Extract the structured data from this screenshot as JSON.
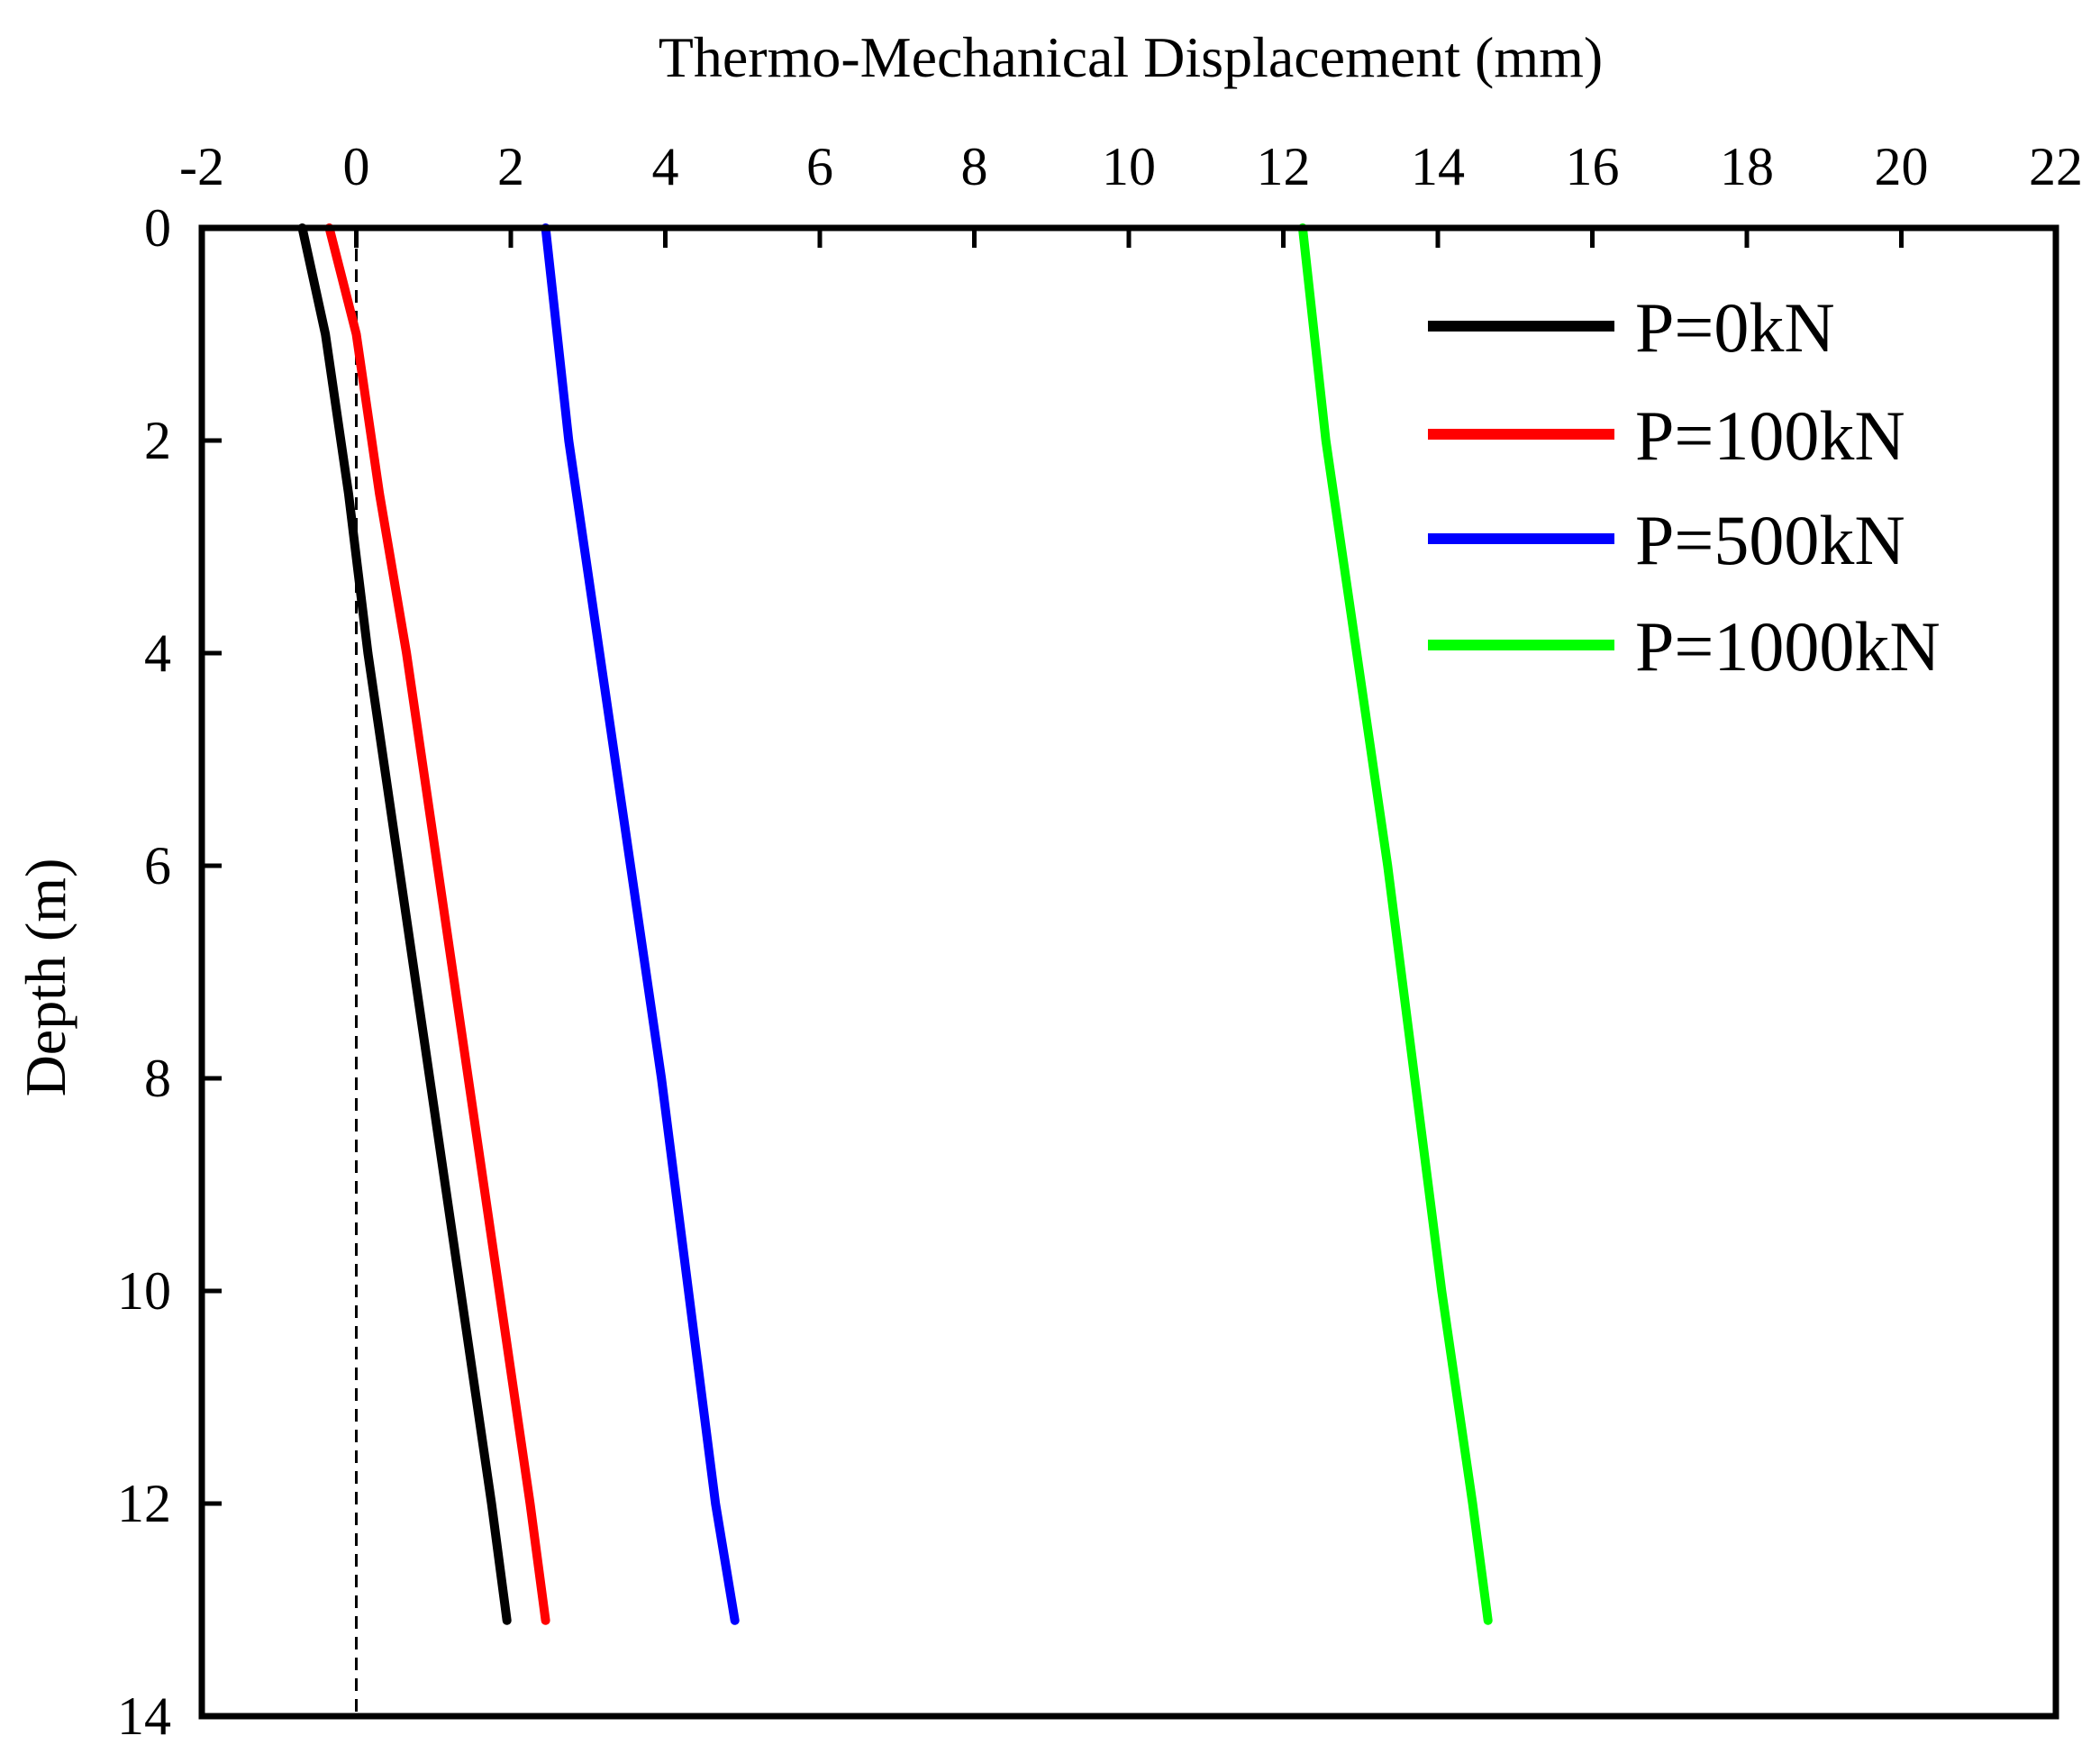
{
  "chart_data": {
    "type": "line",
    "title": "",
    "xlabel": "Thermo-Mechanical Displacement (mm)",
    "ylabel": "Depth (m)",
    "xlim": [
      -2,
      22
    ],
    "ylim": [
      0,
      14
    ],
    "y_inverted": true,
    "x_axis_position": "top",
    "xticks": [
      -2,
      0,
      2,
      4,
      6,
      8,
      10,
      12,
      14,
      16,
      18,
      20,
      22
    ],
    "yticks": [
      0,
      2,
      4,
      6,
      8,
      10,
      12,
      14
    ],
    "xtick_labels": [
      "-2",
      "0",
      "2",
      "4",
      "6",
      "8",
      "10",
      "12",
      "14",
      "16",
      "18",
      "20",
      "22"
    ],
    "ytick_labels": [
      "0",
      "2",
      "4",
      "6",
      "8",
      "10",
      "12",
      "14"
    ],
    "reference_line": {
      "x": 0,
      "style": "dashed"
    },
    "legend_position": "top-right",
    "series": [
      {
        "name": "P=0kN",
        "color": "#000000",
        "points": [
          [
            -0.7,
            0
          ],
          [
            -0.4,
            1
          ],
          [
            -0.1,
            2.5
          ],
          [
            0.15,
            4
          ],
          [
            0.55,
            6
          ],
          [
            0.95,
            8
          ],
          [
            1.35,
            10
          ],
          [
            1.75,
            12
          ],
          [
            1.95,
            13.1
          ]
        ]
      },
      {
        "name": "P=100kN",
        "color": "#ff0000",
        "points": [
          [
            -0.35,
            0
          ],
          [
            0,
            1
          ],
          [
            0.3,
            2.5
          ],
          [
            0.65,
            4
          ],
          [
            1.05,
            6
          ],
          [
            1.45,
            8
          ],
          [
            1.85,
            10
          ],
          [
            2.25,
            12
          ],
          [
            2.45,
            13.1
          ]
        ]
      },
      {
        "name": "P=500kN",
        "color": "#0000ff",
        "points": [
          [
            2.45,
            0
          ],
          [
            2.75,
            2
          ],
          [
            3.15,
            4
          ],
          [
            3.55,
            6
          ],
          [
            3.95,
            8
          ],
          [
            4.3,
            10
          ],
          [
            4.65,
            12
          ],
          [
            4.9,
            13.1
          ]
        ]
      },
      {
        "name": "P=1000kN",
        "color": "#00ff00",
        "points": [
          [
            12.25,
            0
          ],
          [
            12.55,
            2
          ],
          [
            12.95,
            4
          ],
          [
            13.35,
            6
          ],
          [
            13.7,
            8
          ],
          [
            14.05,
            10
          ],
          [
            14.45,
            12
          ],
          [
            14.65,
            13.1
          ]
        ]
      }
    ]
  }
}
